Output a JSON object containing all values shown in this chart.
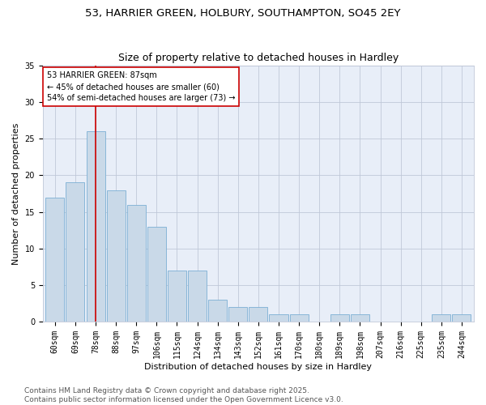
{
  "title1": "53, HARRIER GREEN, HOLBURY, SOUTHAMPTON, SO45 2EY",
  "title2": "Size of property relative to detached houses in Hardley",
  "xlabel": "Distribution of detached houses by size in Hardley",
  "ylabel": "Number of detached properties",
  "categories": [
    "60sqm",
    "69sqm",
    "78sqm",
    "88sqm",
    "97sqm",
    "106sqm",
    "115sqm",
    "124sqm",
    "134sqm",
    "143sqm",
    "152sqm",
    "161sqm",
    "170sqm",
    "180sqm",
    "189sqm",
    "198sqm",
    "207sqm",
    "216sqm",
    "225sqm",
    "235sqm",
    "244sqm"
  ],
  "values": [
    17,
    19,
    26,
    18,
    16,
    13,
    7,
    7,
    3,
    2,
    2,
    1,
    1,
    0,
    1,
    1,
    0,
    0,
    0,
    1,
    1
  ],
  "bar_color": "#c9d9e8",
  "bar_edge_color": "#7bafd4",
  "vline_x_index": 2,
  "vline_color": "#cc0000",
  "annotation_line1": "53 HARRIER GREEN: 87sqm",
  "annotation_line2": "← 45% of detached houses are smaller (60)",
  "annotation_line3": "54% of semi-detached houses are larger (73) →",
  "annotation_box_color": "#ffffff",
  "annotation_box_edge_color": "#cc0000",
  "ylim": [
    0,
    35
  ],
  "yticks": [
    0,
    5,
    10,
    15,
    20,
    25,
    30,
    35
  ],
  "grid_color": "#c0c8d8",
  "bg_color": "#e8eef8",
  "footer1": "Contains HM Land Registry data © Crown copyright and database right 2025.",
  "footer2": "Contains public sector information licensed under the Open Government Licence v3.0.",
  "title_fontsize": 9.5,
  "subtitle_fontsize": 9,
  "axis_label_fontsize": 8,
  "tick_fontsize": 7,
  "annotation_fontsize": 7,
  "footer_fontsize": 6.5
}
